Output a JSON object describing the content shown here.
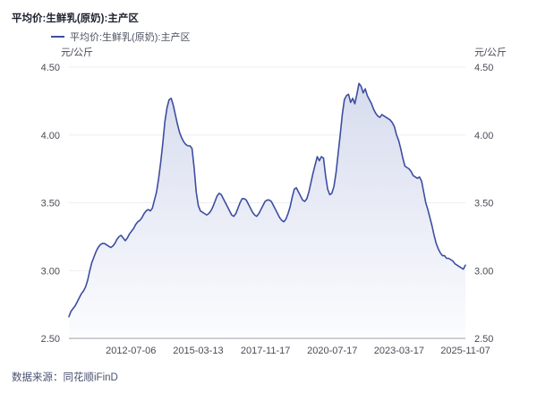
{
  "header": {
    "title": "平均价:生鲜乳(原奶):主产区"
  },
  "legend": {
    "label": "平均价:生鲜乳(原奶):主产区"
  },
  "footer": {
    "source": "数据来源：同花顺iFinD"
  },
  "colors": {
    "line": "#3d4ea0",
    "area_top": "#d7dcee",
    "area_bottom": "#fbfcfe",
    "grid": "#ededf3",
    "axis": "#9c9ca8",
    "tick_text": "#4b4b58"
  },
  "chart_data": {
    "type": "area",
    "title": "平均价:生鲜乳(原奶):主产区",
    "unit": "元/公斤",
    "ylabel_left": "元/公斤",
    "ylabel_right": "元/公斤",
    "ylim": [
      2.5,
      4.5
    ],
    "y_ticks": [
      2.5,
      3.0,
      3.5,
      4.0,
      4.5
    ],
    "x_tick_labels": [
      "2012-07-06",
      "2015-03-13",
      "2017-11-17",
      "2020-07-17",
      "2023-03-17",
      "2025-11-07"
    ],
    "grid": "horizontal",
    "legend_position": "top-left",
    "series": [
      {
        "name": "平均价:生鲜乳(原奶):主产区",
        "freq": "monthly",
        "start_date": "2010-01-15",
        "end_date": "2025-11-07",
        "last_value": 3.04,
        "values": [
          2.66,
          2.7,
          2.72,
          2.74,
          2.77,
          2.8,
          2.83,
          2.85,
          2.88,
          2.93,
          3.0,
          3.06,
          3.1,
          3.14,
          3.17,
          3.19,
          3.2,
          3.2,
          3.19,
          3.18,
          3.17,
          3.18,
          3.2,
          3.23,
          3.25,
          3.26,
          3.24,
          3.22,
          3.24,
          3.27,
          3.29,
          3.31,
          3.34,
          3.36,
          3.37,
          3.39,
          3.42,
          3.44,
          3.45,
          3.44,
          3.46,
          3.52,
          3.58,
          3.68,
          3.8,
          3.94,
          4.1,
          4.2,
          4.26,
          4.27,
          4.22,
          4.15,
          4.08,
          4.02,
          3.98,
          3.95,
          3.93,
          3.92,
          3.92,
          3.9,
          3.76,
          3.58,
          3.48,
          3.44,
          3.43,
          3.42,
          3.41,
          3.42,
          3.44,
          3.47,
          3.51,
          3.55,
          3.57,
          3.56,
          3.53,
          3.5,
          3.47,
          3.44,
          3.41,
          3.4,
          3.42,
          3.46,
          3.5,
          3.53,
          3.53,
          3.52,
          3.49,
          3.46,
          3.43,
          3.41,
          3.4,
          3.42,
          3.45,
          3.48,
          3.51,
          3.52,
          3.52,
          3.51,
          3.48,
          3.45,
          3.42,
          3.39,
          3.37,
          3.36,
          3.38,
          3.42,
          3.47,
          3.54,
          3.6,
          3.61,
          3.58,
          3.55,
          3.52,
          3.51,
          3.53,
          3.58,
          3.65,
          3.72,
          3.78,
          3.84,
          3.81,
          3.84,
          3.83,
          3.7,
          3.6,
          3.56,
          3.57,
          3.62,
          3.72,
          3.86,
          4.0,
          4.15,
          4.26,
          4.29,
          4.3,
          4.24,
          4.27,
          4.23,
          4.3,
          4.38,
          4.36,
          4.31,
          4.34,
          4.29,
          4.26,
          4.23,
          4.19,
          4.16,
          4.14,
          4.13,
          4.15,
          4.14,
          4.13,
          4.12,
          4.11,
          4.09,
          4.06,
          4.0,
          3.96,
          3.9,
          3.83,
          3.77,
          3.76,
          3.75,
          3.73,
          3.7,
          3.69,
          3.68,
          3.69,
          3.66,
          3.58,
          3.5,
          3.45,
          3.39,
          3.33,
          3.26,
          3.2,
          3.16,
          3.13,
          3.11,
          3.11,
          3.09,
          3.09,
          3.08,
          3.07,
          3.05,
          3.04,
          3.03,
          3.02,
          3.01,
          3.04
        ]
      }
    ]
  }
}
